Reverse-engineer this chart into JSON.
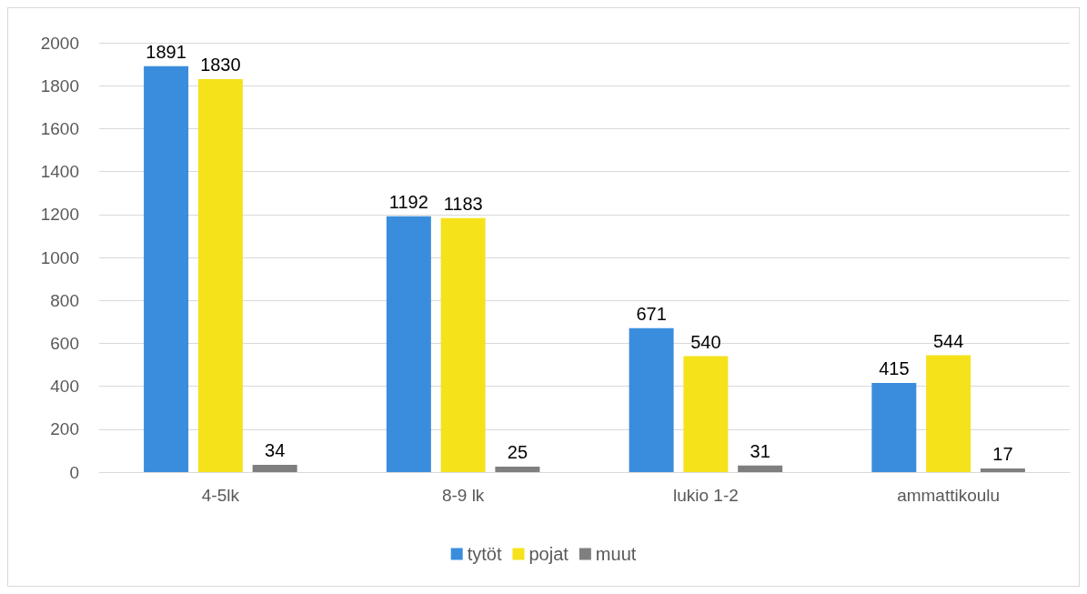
{
  "chart_data": {
    "type": "bar",
    "categories": [
      "4-5lk",
      "8-9 lk",
      "lukio 1-2",
      "ammattikoulu"
    ],
    "series": [
      {
        "name": "tytöt",
        "color": "#3a8ddd",
        "values": [
          1891,
          1192,
          671,
          415
        ]
      },
      {
        "name": "pojat",
        "color": "#f5e21b",
        "values": [
          1830,
          1183,
          540,
          544
        ]
      },
      {
        "name": "muut",
        "color": "#7f7f7f",
        "values": [
          34,
          25,
          31,
          17
        ]
      }
    ],
    "ylim": [
      0,
      2000
    ],
    "yticks": [
      0,
      200,
      400,
      600,
      800,
      1000,
      1200,
      1400,
      1600,
      1800,
      2000
    ],
    "grid": "y",
    "legend": "bottom",
    "data_labels": true
  }
}
